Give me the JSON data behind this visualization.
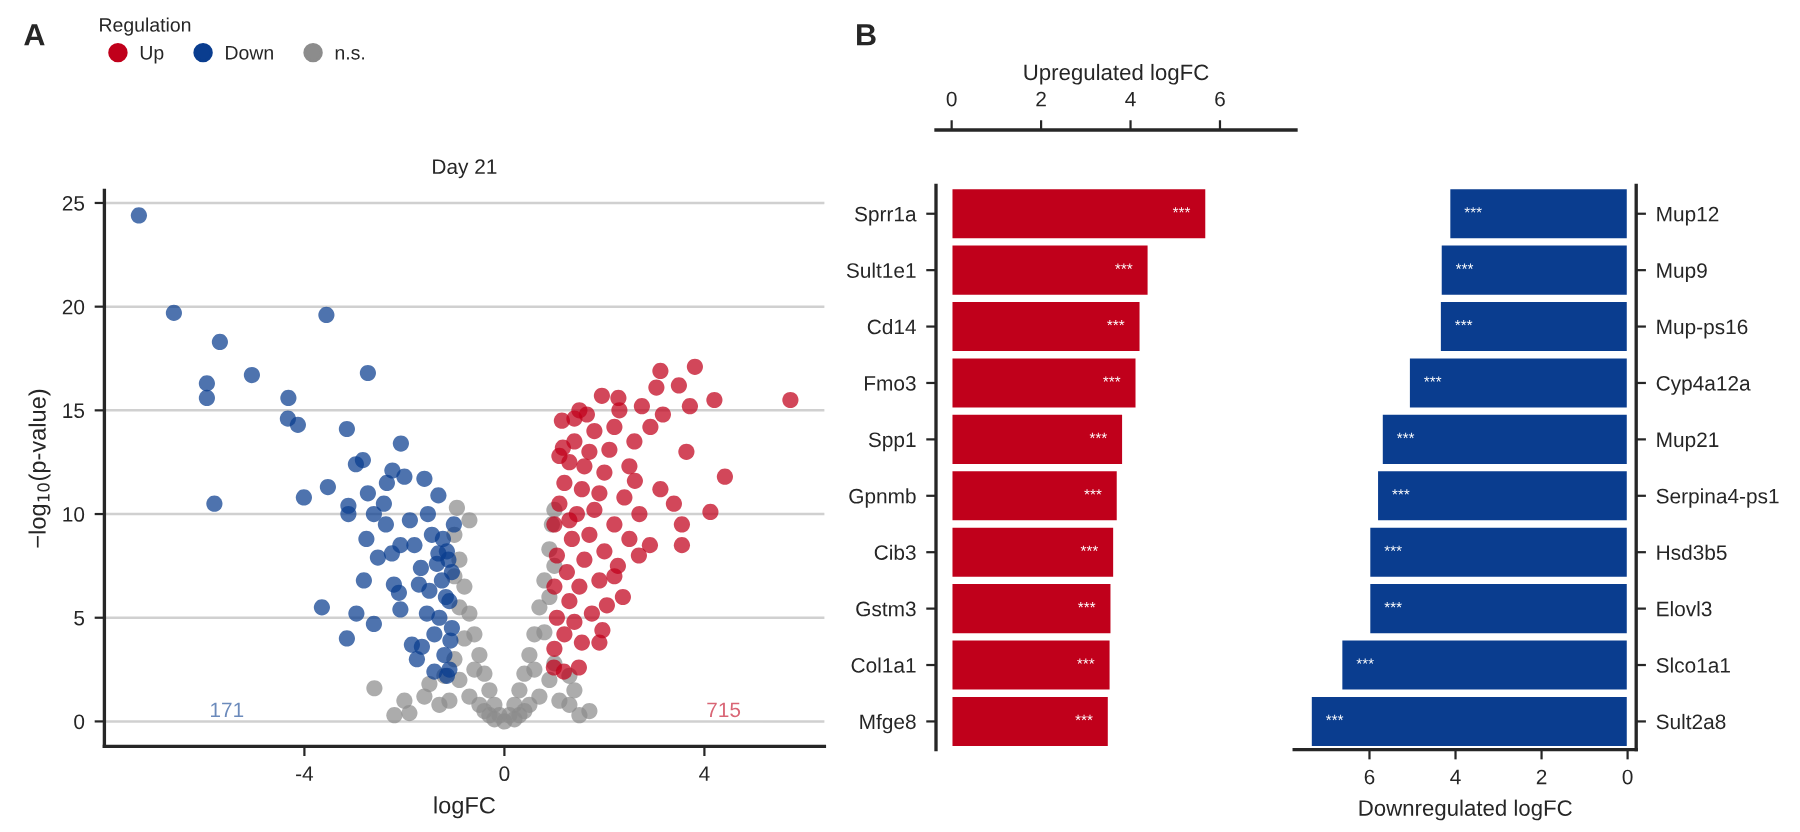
{
  "chart_data": [
    {
      "type": "scatter",
      "title": "Day 21",
      "xlabel": "logFC",
      "ylabel": "−log$_{10}$(p-value)",
      "legend_title": "Regulation",
      "legend": "top",
      "grid": "y",
      "marker": "circle",
      "xlim": [
        -8,
        6.4
      ],
      "xticks": [
        -4,
        0,
        4
      ],
      "ylim": [
        -1.2,
        25.6
      ],
      "yticks": [
        0,
        5,
        10,
        15,
        20,
        25
      ],
      "annotations": [
        "A",
        "171",
        "715"
      ],
      "series": [
        {
          "name": "Up",
          "color": "#c0001b",
          "x": [
            5.72,
            3.81,
            3.12,
            3.49,
            3.04,
            4.2,
            1.95,
            2.28,
            3.71,
            1.4,
            3.17,
            2.75,
            3.64,
            4.41,
            4.12,
            3.55,
            3.55,
            2.91,
            2.69,
            3.39,
            3.12,
            2.37,
            1.96,
            1.49,
            1.19,
            0.99,
            2.05,
            2.27,
            2.61,
            2.92,
            1.17,
            1.0,
            1.05,
            1.0,
            1.05,
            1.0,
            1.1,
            1.2,
            1.3,
            1.4,
            1.2,
            1.3,
            1.25,
            1.35,
            1.45,
            1.55,
            1.6,
            1.7,
            1.8,
            1.5,
            1.6,
            1.7,
            1.8,
            1.9,
            2.0,
            2.1,
            2.2,
            1.4,
            1.55,
            1.75,
            1.9,
            2.0,
            2.2,
            2.4,
            2.5,
            2.6,
            1.15,
            1.5,
            2.3,
            1.65,
            2.7,
            2.5,
            2.2,
            1.1,
            1.3,
            1.9
          ],
          "values": [
            15.5,
            17.1,
            16.9,
            16.2,
            16.1,
            15.5,
            15.7,
            15.6,
            15.2,
            14.6,
            14.8,
            15.2,
            13.0,
            11.8,
            10.1,
            9.5,
            8.5,
            8.5,
            8.0,
            10.5,
            11.2,
            6.0,
            4.4,
            2.6,
            2.4,
            2.6,
            5.6,
            7.5,
            11.6,
            14.2,
            13.2,
            3.5,
            5.0,
            6.5,
            8.0,
            9.5,
            10.5,
            11.5,
            12.5,
            13.5,
            4.2,
            5.8,
            7.2,
            8.8,
            10.0,
            11.2,
            12.3,
            13.0,
            14.0,
            6.5,
            7.8,
            9.0,
            10.2,
            11.0,
            12.0,
            13.1,
            14.2,
            4.8,
            3.8,
            5.2,
            6.8,
            8.2,
            9.5,
            10.8,
            12.3,
            13.5,
            14.5,
            15.0,
            15.0,
            14.8,
            10.0,
            8.8,
            7.0,
            12.8,
            9.7,
            3.8
          ]
        },
        {
          "name": "Down",
          "color": "#0a3d8f",
          "x": [
            -7.31,
            -6.61,
            -3.56,
            -5.69,
            -2.73,
            -5.05,
            -5.95,
            -5.95,
            -4.32,
            -4.33,
            -4.13,
            -3.15,
            -2.07,
            -2.83,
            -2.97,
            -2.24,
            -2.0,
            -1.6,
            -2.35,
            -3.53,
            -2.73,
            -4.01,
            -5.8,
            -3.12,
            -2.41,
            -1.32,
            -3.12,
            -2.61,
            -2.37,
            -1.89,
            -1.53,
            -1.01,
            -2.76,
            -2.08,
            -1.8,
            -2.53,
            -2.25,
            -1.32,
            -1.23,
            -1.67,
            -2.21,
            -2.81,
            -2.11,
            -1.71,
            -2.08,
            -3.65,
            -2.96,
            -2.61,
            -3.15,
            -1.55,
            -1.85,
            -1.65,
            -1.75,
            -1.4,
            -1.15,
            -1.08,
            -1.17,
            -1.12,
            -1.1,
            -1.2,
            -1.05,
            -1.3,
            -1.1,
            -1.25,
            -1.05,
            -1.15,
            -1.4,
            -1.5,
            -1.35,
            -1.45
          ],
          "values": [
            24.4,
            19.7,
            19.6,
            18.3,
            16.8,
            16.7,
            16.3,
            15.6,
            15.6,
            14.6,
            14.3,
            14.1,
            13.4,
            12.6,
            12.4,
            12.1,
            11.8,
            11.7,
            11.5,
            11.3,
            11.0,
            10.8,
            10.5,
            10.4,
            10.5,
            10.9,
            10.0,
            10.0,
            9.5,
            9.7,
            10.0,
            9.5,
            8.8,
            8.5,
            8.5,
            7.9,
            8.1,
            8.1,
            8.8,
            7.4,
            6.6,
            6.8,
            6.2,
            6.6,
            5.4,
            5.5,
            5.2,
            4.7,
            4.0,
            5.2,
            3.7,
            3.6,
            3.0,
            2.4,
            2.2,
            3.9,
            6.0,
            7.8,
            2.5,
            3.2,
            4.5,
            5.0,
            5.8,
            6.8,
            7.2,
            8.2,
            4.2,
            6.3,
            7.6,
            9.0
          ]
        },
        {
          "name": "n.s.",
          "color": "#8c8c8c",
          "x": [
            0,
            -0.1,
            0.1,
            -0.2,
            0.2,
            -0.3,
            0.3,
            -0.4,
            0.4,
            -0.5,
            0.5,
            -0.6,
            0.6,
            -0.7,
            0.7,
            -0.8,
            0.8,
            -0.9,
            0.9,
            -1.0,
            0.95,
            -0.95,
            -0.7,
            1.0,
            -0.3,
            0.3,
            -0.5,
            0.5,
            -0.7,
            0.7,
            -0.9,
            0.9,
            -1.0,
            1.0,
            -1.1,
            -1.3,
            -1.6,
            -2.0,
            -2.6,
            1.1,
            1.3,
            1.4,
            1.3,
            -1.5,
            -1.2,
            -0.6,
            0.6,
            -0.8,
            0.8,
            -0.9,
            0.9,
            -1.0,
            1.0,
            -0.4,
            0.4,
            -0.2,
            0.2,
            -1.9,
            -2.2,
            1.7,
            1.5
          ],
          "values": [
            0,
            0.3,
            0.3,
            0.8,
            0.8,
            1.5,
            1.5,
            2.3,
            2.3,
            3.2,
            3.2,
            4.2,
            4.2,
            5.2,
            5.5,
            6.5,
            6.8,
            7.8,
            8.3,
            9.0,
            9.5,
            10.3,
            9.7,
            10.2,
            0.3,
            0.3,
            0.8,
            0.8,
            1.2,
            1.2,
            2.0,
            2.0,
            3.0,
            2.8,
            1.0,
            0.8,
            1.2,
            1.0,
            1.6,
            1.0,
            0.8,
            1.5,
            2.2,
            1.8,
            2.2,
            2.5,
            2.5,
            4.0,
            4.3,
            5.5,
            6.0,
            7.0,
            7.5,
            0.5,
            0.5,
            0.1,
            0.1,
            0.4,
            0.3,
            0.5,
            0.3
          ]
        }
      ]
    },
    {
      "type": "bar",
      "orientation": "horizontal",
      "x2label": "Upregulated logFC",
      "x2lim": [
        -0.35,
        7.7
      ],
      "x2ticks": [
        0,
        2,
        4,
        6
      ],
      "annotations": [
        "B"
      ],
      "categories": [
        "Sprr1a",
        "Sult1e1",
        "Cd14",
        "Fmo3",
        "Spp1",
        "Gpnmb",
        "Cib3",
        "Gstm3",
        "Col1a1",
        "Mfge8"
      ],
      "series": [
        {
          "color": "#c0001b",
          "axis": "x2",
          "values": [
            5.69,
            4.4,
            4.22,
            4.13,
            3.83,
            3.71,
            3.63,
            3.57,
            3.55,
            3.51
          ],
          "value_labels": [
            "***",
            "***",
            "***",
            "***",
            "***",
            "***",
            "***",
            "***",
            "***",
            "***"
          ]
        }
      ]
    },
    {
      "type": "bar",
      "orientation": "horizontal",
      "xlabel": "Downregulated logFC",
      "xlim": [
        7.75,
        -0.2
      ],
      "xticks": [
        6,
        4,
        2,
        0
      ],
      "categories": [
        "Mup12",
        "Mup9",
        "Mup-ps16",
        "Cyp4a12a",
        "Mup21",
        "Serpina4-ps1",
        "Hsd3b5",
        "Elovl3",
        "Slco1a1",
        "Sult2a8"
      ],
      "series": [
        {
          "color": "#0a3d8f",
          "values": [
            4.14,
            4.34,
            4.36,
            5.08,
            5.71,
            5.82,
            6.0,
            6.0,
            6.65,
            7.36
          ],
          "value_labels": [
            "***",
            "***",
            "***",
            "***",
            "***",
            "***",
            "***",
            "***",
            "***",
            "***"
          ]
        }
      ]
    }
  ]
}
